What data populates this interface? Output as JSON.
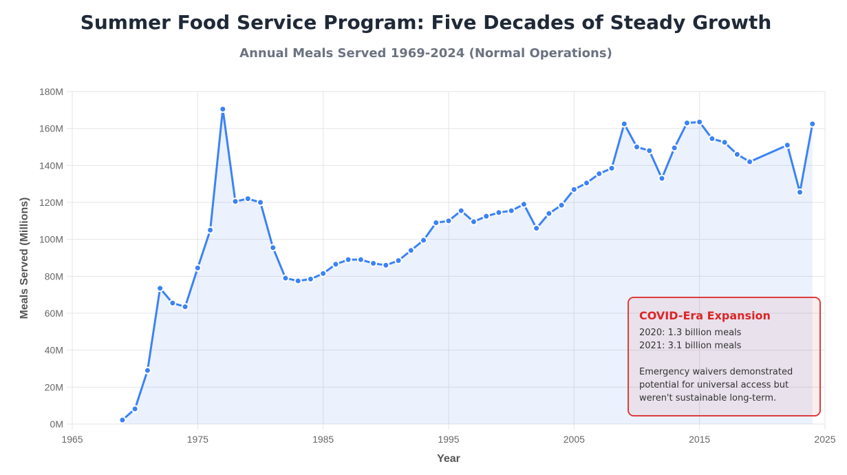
{
  "title": "Summer Food Service Program: Five Decades of Steady Growth",
  "subtitle": "Annual Meals Served 1969-2024 (Normal Operations)",
  "annotation": {
    "title": "COVID-Era Expansion",
    "line1": "2020: 1.3 billion meals",
    "line2": "2021: 3.1 billion meals",
    "note": "Emergency waivers demonstrated potential for universal access but weren't sustainable long-term."
  },
  "chart_data": {
    "type": "line",
    "fill": "area",
    "title": "Summer Food Service Program: Five Decades of Steady Growth",
    "xlabel": "Year",
    "ylabel": "Meals Served (Millions)",
    "xlim": [
      1965,
      2025
    ],
    "ylim": [
      0,
      180
    ],
    "x_ticks": [
      "1965",
      "1975",
      "1985",
      "1995",
      "2005",
      "2015",
      "2025"
    ],
    "y_ticks": [
      "0M",
      "20M",
      "40M",
      "60M",
      "80M",
      "100M",
      "120M",
      "140M",
      "160M",
      "180M"
    ],
    "line_color": "#3b82f6",
    "series": [
      {
        "name": "Meals Served (Millions)",
        "x": [
          1969,
          1970,
          1971,
          1972,
          1973,
          1974,
          1975,
          1976,
          1977,
          1978,
          1979,
          1980,
          1981,
          1982,
          1983,
          1984,
          1985,
          1986,
          1987,
          1988,
          1989,
          1990,
          1991,
          1992,
          1993,
          1994,
          1995,
          1996,
          1997,
          1998,
          1999,
          2000,
          2001,
          2002,
          2003,
          2004,
          2005,
          2006,
          2007,
          2008,
          2009,
          2010,
          2011,
          2012,
          2013,
          2014,
          2015,
          2016,
          2017,
          2018,
          2019,
          2022,
          2023,
          2024
        ],
        "values": [
          2.2,
          8.2,
          29,
          73.5,
          65.5,
          63.5,
          84.5,
          105,
          170.5,
          120.5,
          122,
          120,
          95.5,
          79,
          77.5,
          78.5,
          81.5,
          86.5,
          89,
          89,
          87,
          86,
          88.5,
          94,
          99.5,
          109,
          110,
          115.5,
          109.5,
          112.5,
          114.5,
          115.5,
          119,
          106,
          114,
          118.5,
          127,
          130.5,
          135.5,
          138.5,
          162.5,
          150,
          148,
          133,
          149.5,
          163,
          163.5,
          154.5,
          152.5,
          146,
          142,
          151,
          125.5,
          162.5
        ]
      }
    ]
  }
}
